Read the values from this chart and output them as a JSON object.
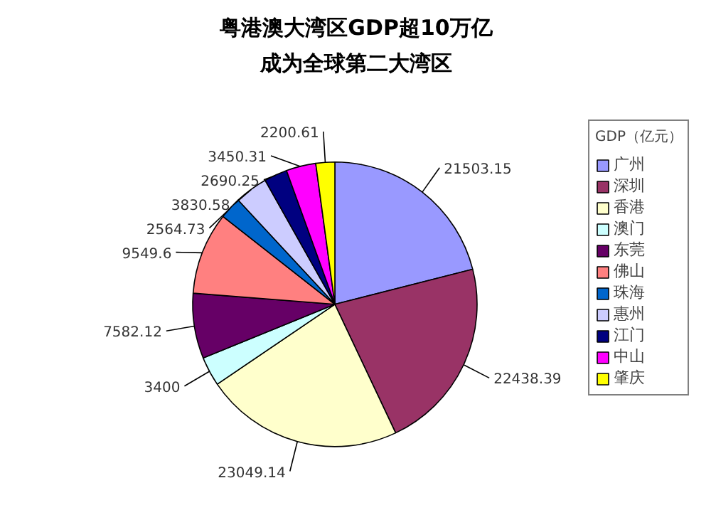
{
  "chart_data": {
    "type": "pie",
    "title": "粤港澳大湾区GDP超10万亿",
    "subtitle": "成为全球第二大湾区",
    "legend_title": "GDP（亿元）",
    "categories": [
      "广州",
      "深圳",
      "香港",
      "澳门",
      "东莞",
      "佛山",
      "珠海",
      "惠州",
      "江门",
      "中山",
      "肇庆"
    ],
    "values": [
      21503.15,
      22438.39,
      23049.14,
      3400,
      7582.12,
      9549.6,
      2564.73,
      3830.58,
      2690.25,
      3450.31,
      2200.61
    ],
    "colors": [
      "#9999ff",
      "#993366",
      "#ffffcc",
      "#ccffff",
      "#660066",
      "#ff8080",
      "#0066cc",
      "#ccccff",
      "#000080",
      "#ff00ff",
      "#ffff00"
    ],
    "data_labels": true,
    "legend": "right"
  }
}
